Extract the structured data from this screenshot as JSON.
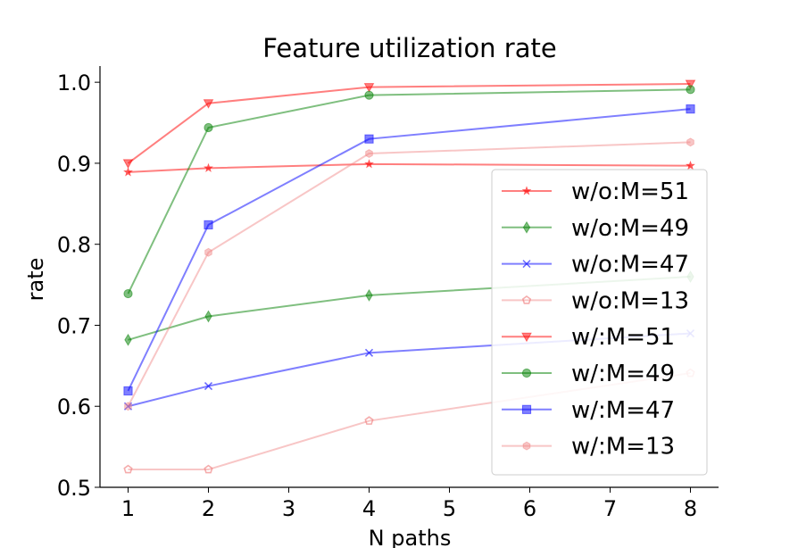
{
  "chart_data": {
    "type": "line",
    "title": "Feature utilization rate",
    "xlabel": "N paths",
    "ylabel": "rate",
    "x_ticks": [
      1,
      2,
      3,
      4,
      5,
      6,
      7,
      8
    ],
    "y_ticks": [
      "0.5",
      "0.6",
      "0.7",
      "0.8",
      "0.9",
      "1.0"
    ],
    "xlim": [
      0.65,
      8.35
    ],
    "ylim": [
      0.5,
      1.02
    ],
    "grid": false,
    "legend_position": "lower-right",
    "series": [
      {
        "name": "w/o:M=51",
        "color": "#ff0000",
        "marker": "star",
        "alpha": 0.5,
        "x": [
          1,
          2,
          4,
          8
        ],
        "y": [
          0.889,
          0.894,
          0.899,
          0.897
        ]
      },
      {
        "name": "w/o:M=49",
        "color": "#008000",
        "marker": "thin_diamond",
        "alpha": 0.5,
        "x": [
          1,
          2,
          4,
          8
        ],
        "y": [
          0.682,
          0.711,
          0.737,
          0.76
        ]
      },
      {
        "name": "w/o:M=47",
        "color": "#0000ff",
        "marker": "x",
        "alpha": 0.5,
        "x": [
          1,
          2,
          4,
          8
        ],
        "y": [
          0.6,
          0.625,
          0.666,
          0.69
        ]
      },
      {
        "name": "w/o:M=13",
        "color": "#f08080",
        "marker": "pentagon",
        "alpha": 0.45,
        "x": [
          1,
          2,
          4,
          8
        ],
        "y": [
          0.522,
          0.522,
          0.582,
          0.641
        ]
      },
      {
        "name": "w/:M=51",
        "color": "#ff0000",
        "marker": "triangle_down",
        "alpha": 0.5,
        "x": [
          1,
          2,
          4,
          8
        ],
        "y": [
          0.9,
          0.974,
          0.994,
          0.998
        ]
      },
      {
        "name": "w/:M=49",
        "color": "#008000",
        "marker": "circle",
        "alpha": 0.5,
        "x": [
          1,
          2,
          4,
          8
        ],
        "y": [
          0.739,
          0.944,
          0.984,
          0.991
        ]
      },
      {
        "name": "w/:M=47",
        "color": "#0000ff",
        "marker": "square",
        "alpha": 0.5,
        "x": [
          1,
          2,
          4,
          8
        ],
        "y": [
          0.619,
          0.824,
          0.93,
          0.967
        ]
      },
      {
        "name": "w/:M=13",
        "color": "#f08080",
        "marker": "hexagon",
        "alpha": 0.45,
        "x": [
          1,
          2,
          4,
          8
        ],
        "y": [
          0.6,
          0.79,
          0.912,
          0.926
        ]
      }
    ]
  }
}
